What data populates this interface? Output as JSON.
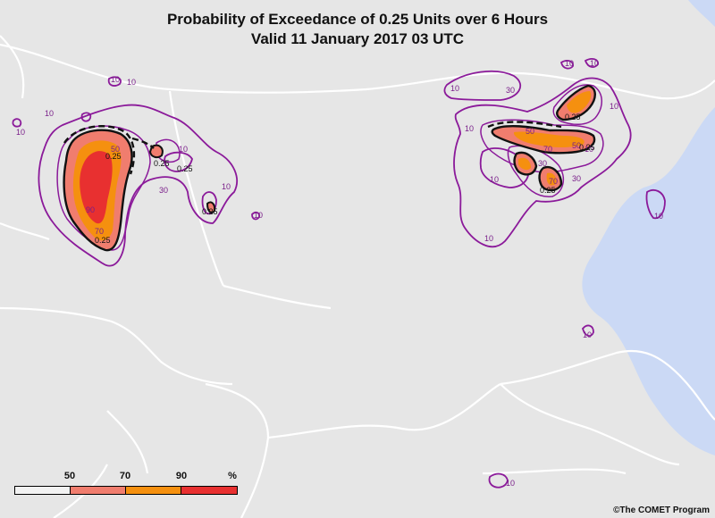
{
  "title": {
    "line1": "Probability of Exceedance of 0.25 Units over 6 Hours",
    "line2": "Valid 11 January 2017 03 UTC"
  },
  "legend": {
    "labels": [
      "50",
      "70",
      "90",
      "%"
    ],
    "colors": [
      "#f2f2f2",
      "#f07d6e",
      "#f5900f",
      "#e83030"
    ]
  },
  "credit": "©The COMET Program",
  "colors": {
    "land": "#e6e6e6",
    "sea": "#cbd9f5",
    "borders": "#ffffff",
    "contour_outer": "#8b1a9a",
    "threshold_line": "#111111"
  },
  "contour_labels": {
    "outer": "10",
    "mid": "30",
    "high": "50",
    "higher": "70",
    "top": "90",
    "threshold": "0.25"
  }
}
